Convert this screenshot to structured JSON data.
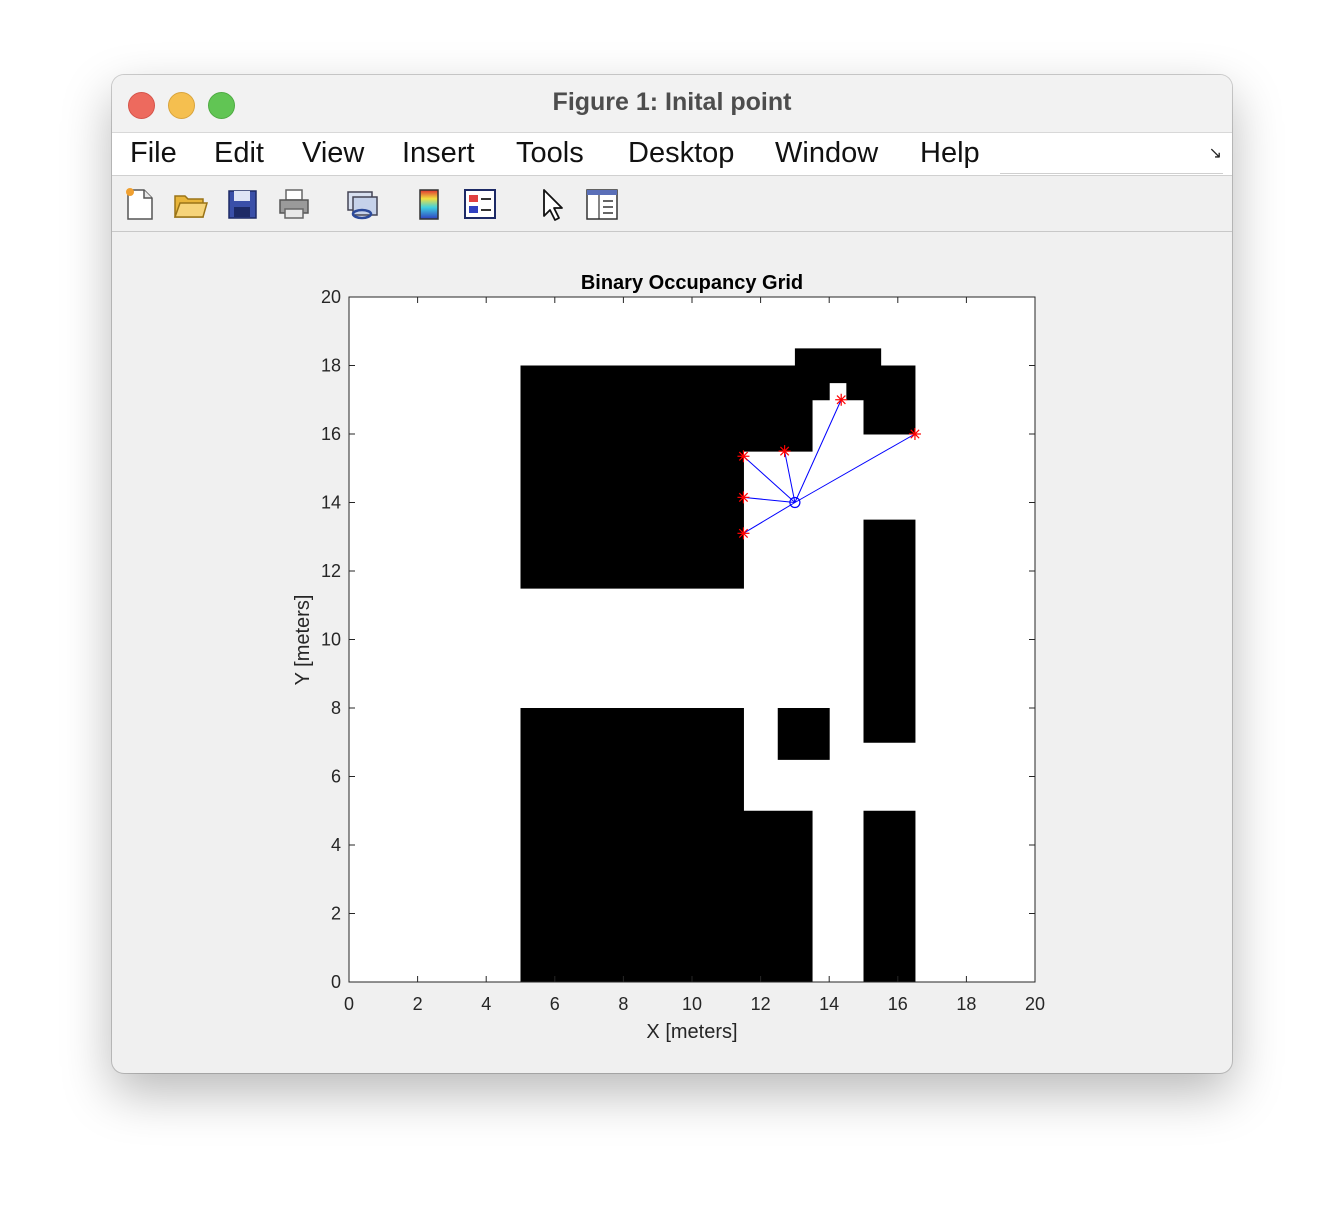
{
  "window": {
    "title": "Figure 1: Inital point"
  },
  "menu": [
    "File",
    "Edit",
    "View",
    "Insert",
    "Tools",
    "Desktop",
    "Window",
    "Help"
  ],
  "toolbar": {
    "icons": [
      "new-figure-icon",
      "open-file-icon",
      "save-icon",
      "print-icon",
      "link-plot-icon",
      "insert-colorbar-icon",
      "insert-legend-icon",
      "edit-plot-arrow-icon",
      "property-inspector-icon"
    ]
  },
  "chart_data": {
    "type": "occupancy-grid",
    "title": "Binary Occupancy Grid",
    "xlabel": "X [meters]",
    "ylabel": "Y [meters]",
    "xlim": [
      0,
      20
    ],
    "ylim": [
      0,
      20
    ],
    "xticks": [
      "0",
      "2",
      "4",
      "6",
      "8",
      "10",
      "12",
      "14",
      "16",
      "18",
      "20"
    ],
    "yticks": [
      "0",
      "2",
      "4",
      "6",
      "8",
      "10",
      "12",
      "14",
      "16",
      "18",
      "20"
    ],
    "occupied_rects": [
      {
        "x0": 5,
        "x1": 11.5,
        "y0": 11.5,
        "y1": 18
      },
      {
        "x0": 11.5,
        "x1": 13.5,
        "y0": 15.5,
        "y1": 18
      },
      {
        "x0": 13.5,
        "x1": 14,
        "y0": 17,
        "y1": 18
      },
      {
        "x0": 13,
        "x1": 15.5,
        "y0": 17.5,
        "y1": 18.5
      },
      {
        "x0": 14.5,
        "x1": 16.5,
        "y0": 17,
        "y1": 18
      },
      {
        "x0": 15,
        "x1": 16.5,
        "y0": 16,
        "y1": 17
      },
      {
        "x0": 15,
        "x1": 16.5,
        "y0": 7,
        "y1": 13.5
      },
      {
        "x0": 5,
        "x1": 11.5,
        "y0": 0,
        "y1": 8
      },
      {
        "x0": 11.5,
        "x1": 13.5,
        "y0": 0,
        "y1": 5
      },
      {
        "x0": 12.5,
        "x1": 14,
        "y0": 6.5,
        "y1": 8
      },
      {
        "x0": 15,
        "x1": 16.5,
        "y0": 0,
        "y1": 5
      }
    ],
    "sensor_origin": {
      "x": 13,
      "y": 14
    },
    "hit_points": [
      {
        "x": 11.5,
        "y": 15.35
      },
      {
        "x": 12.7,
        "y": 15.5
      },
      {
        "x": 14.35,
        "y": 17
      },
      {
        "x": 16.5,
        "y": 16
      },
      {
        "x": 11.5,
        "y": 14.15
      },
      {
        "x": 11.5,
        "y": 13.1
      }
    ],
    "colors": {
      "occupied": "#000000",
      "free": "#ffffff",
      "ray": "#0000ff",
      "hit": "#ff0000",
      "origin": "#0000ff"
    }
  }
}
